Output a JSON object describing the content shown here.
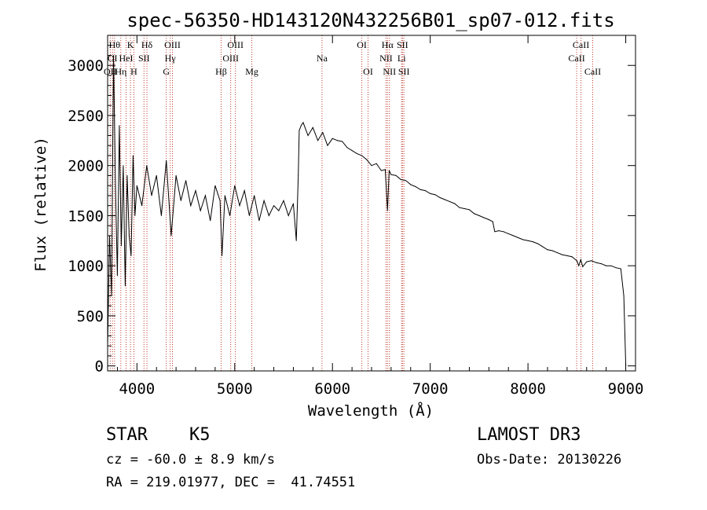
{
  "chart_data": {
    "type": "line",
    "title": "spec-56350-HD143120N432256B01_sp07-012.fits",
    "xlabel": "Wavelength (Å)",
    "ylabel": "Flux (relative)",
    "xlim": [
      3700,
      9100
    ],
    "ylim": [
      -50,
      3300
    ],
    "x_ticks": [
      {
        "value": 4000,
        "label": "4000"
      },
      {
        "value": 5000,
        "label": "5000"
      },
      {
        "value": 6000,
        "label": "6000"
      },
      {
        "value": 7000,
        "label": "7000"
      },
      {
        "value": 8000,
        "label": "8000"
      },
      {
        "value": 9000,
        "label": "9000"
      }
    ],
    "y_ticks": [
      {
        "value": 0,
        "label": "0"
      },
      {
        "value": 500,
        "label": "500"
      },
      {
        "value": 1000,
        "label": "1000"
      },
      {
        "value": 1500,
        "label": "1500"
      },
      {
        "value": 2000,
        "label": "2000"
      },
      {
        "value": 2500,
        "label": "2500"
      },
      {
        "value": 3000,
        "label": "3000"
      }
    ],
    "series": [
      {
        "name": "spectrum",
        "color": "#000000",
        "x": [
          3700,
          3720,
          3740,
          3760,
          3780,
          3800,
          3820,
          3840,
          3860,
          3880,
          3900,
          3920,
          3940,
          3960,
          3980,
          4000,
          4050,
          4100,
          4150,
          4200,
          4250,
          4300,
          4350,
          4400,
          4450,
          4500,
          4550,
          4600,
          4650,
          4700,
          4750,
          4800,
          4850,
          4870,
          4900,
          4950,
          5000,
          5050,
          5100,
          5150,
          5200,
          5250,
          5300,
          5350,
          5400,
          5450,
          5500,
          5550,
          5600,
          5630,
          5650,
          5660,
          5680,
          5700,
          5750,
          5800,
          5850,
          5900,
          5950,
          6000,
          6050,
          6100,
          6150,
          6200,
          6250,
          6300,
          6350,
          6400,
          6450,
          6500,
          6540,
          6563,
          6580,
          6600,
          6650,
          6700,
          6750,
          6800,
          6850,
          6900,
          6950,
          7000,
          7050,
          7100,
          7150,
          7200,
          7250,
          7300,
          7350,
          7400,
          7450,
          7500,
          7550,
          7600,
          7640,
          7660,
          7700,
          7750,
          7800,
          7850,
          7900,
          7950,
          8000,
          8050,
          8100,
          8150,
          8200,
          8250,
          8300,
          8350,
          8400,
          8450,
          8500,
          8520,
          8540,
          8560,
          8600,
          8650,
          8700,
          8750,
          8800,
          8850,
          8900,
          8950,
          8980,
          9000
        ],
        "y": [
          200,
          1300,
          700,
          3100,
          1800,
          900,
          2400,
          1200,
          2000,
          800,
          1900,
          1300,
          1100,
          2100,
          1500,
          1800,
          1600,
          2000,
          1700,
          1900,
          1500,
          2050,
          1300,
          1900,
          1650,
          1850,
          1600,
          1750,
          1550,
          1700,
          1450,
          1800,
          1650,
          1100,
          1700,
          1500,
          1800,
          1600,
          1750,
          1500,
          1700,
          1450,
          1650,
          1500,
          1600,
          1550,
          1650,
          1500,
          1620,
          1250,
          1900,
          2350,
          2400,
          2430,
          2300,
          2380,
          2250,
          2330,
          2200,
          2270,
          2250,
          2240,
          2180,
          2150,
          2120,
          2100,
          2060,
          2000,
          2020,
          1950,
          1960,
          1550,
          1950,
          1910,
          1900,
          1860,
          1850,
          1810,
          1790,
          1760,
          1750,
          1720,
          1710,
          1680,
          1660,
          1640,
          1620,
          1580,
          1570,
          1560,
          1520,
          1500,
          1480,
          1460,
          1440,
          1340,
          1350,
          1340,
          1320,
          1300,
          1280,
          1260,
          1250,
          1240,
          1220,
          1190,
          1160,
          1150,
          1130,
          1110,
          1100,
          1090,
          1050,
          1000,
          1060,
          990,
          1040,
          1050,
          1030,
          1020,
          1000,
          1000,
          980,
          970,
          700,
          0
        ]
      }
    ],
    "line_markers": [
      {
        "wavelength": 3727,
        "label": "OII",
        "row": 3
      },
      {
        "wavelength": 3750,
        "label": "OI",
        "row": 2
      },
      {
        "wavelength": 3771,
        "label": "Hθ",
        "row": 1
      },
      {
        "wavelength": 3835,
        "label": "Hη",
        "row": 3
      },
      {
        "wavelength": 3889,
        "label": "HeI",
        "row": 2
      },
      {
        "wavelength": 3934,
        "label": "K",
        "row": 1
      },
      {
        "wavelength": 3969,
        "label": "H",
        "row": 3
      },
      {
        "wavelength": 4072,
        "label": "SII",
        "row": 2
      },
      {
        "wavelength": 4102,
        "label": "Hδ",
        "row": 1
      },
      {
        "wavelength": 4300,
        "label": "G",
        "row": 3
      },
      {
        "wavelength": 4340,
        "label": "Hγ",
        "row": 2
      },
      {
        "wavelength": 4363,
        "label": "OIII",
        "row": 1
      },
      {
        "wavelength": 4861,
        "label": "Hβ",
        "row": 3
      },
      {
        "wavelength": 4959,
        "label": "OIII",
        "row": 2
      },
      {
        "wavelength": 5007,
        "label": "OIII",
        "row": 1
      },
      {
        "wavelength": 5175,
        "label": "Mg",
        "row": 3
      },
      {
        "wavelength": 5893,
        "label": "Na",
        "row": 2
      },
      {
        "wavelength": 6300,
        "label": "OI",
        "row": 1
      },
      {
        "wavelength": 6364,
        "label": "OI",
        "row": 3
      },
      {
        "wavelength": 6548,
        "label": "NII",
        "row": 2
      },
      {
        "wavelength": 6563,
        "label": "Hα",
        "row": 1
      },
      {
        "wavelength": 6583,
        "label": "NII",
        "row": 3
      },
      {
        "wavelength": 6707,
        "label": "Li",
        "row": 2
      },
      {
        "wavelength": 6716,
        "label": "SII",
        "row": 1
      },
      {
        "wavelength": 6731,
        "label": "SII",
        "row": 3
      },
      {
        "wavelength": 8498,
        "label": "CaII",
        "row": 2
      },
      {
        "wavelength": 8542,
        "label": "CaII",
        "row": 1
      },
      {
        "wavelength": 8662,
        "label": "CaII",
        "row": 3
      }
    ]
  },
  "info": {
    "class_label": "STAR",
    "subclass_label": "K5",
    "survey_label": "LAMOST DR3",
    "redshift_text": "cz = -60.0 ± 8.9 km/s",
    "obs_date_text": "Obs-Date: 20130226",
    "coords_text": "RA = 219.01977, DEC =  41.74551"
  },
  "colors": {
    "marker_line": "#c0392b",
    "axes": "#000000",
    "background": "#ffffff"
  }
}
